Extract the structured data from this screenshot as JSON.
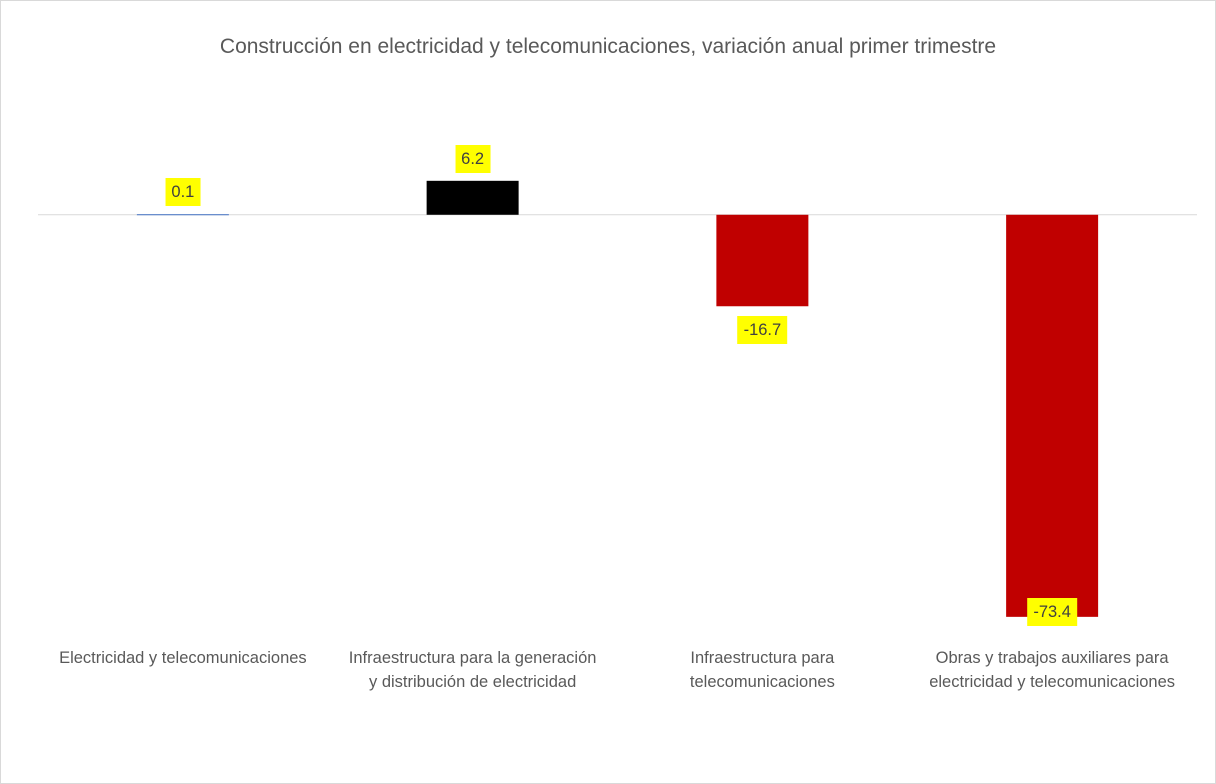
{
  "chart_data": {
    "type": "bar",
    "title": "Construcción en electricidad y telecomunicaciones, variación anual primer trimestre",
    "categories": [
      "Electricidad y telecomunicaciones",
      "Infraestructura para la generación y distribución de electricidad",
      "Infraestructura para telecomunicaciones",
      "Obras y trabajos auxiliares para electricidad y telecomunicaciones"
    ],
    "values": [
      0.1,
      6.2,
      -16.7,
      -73.4
    ],
    "colors": [
      "#4472c4",
      "#000000",
      "#c00000",
      "#c00000"
    ],
    "ylim": [
      -80,
      10
    ]
  }
}
